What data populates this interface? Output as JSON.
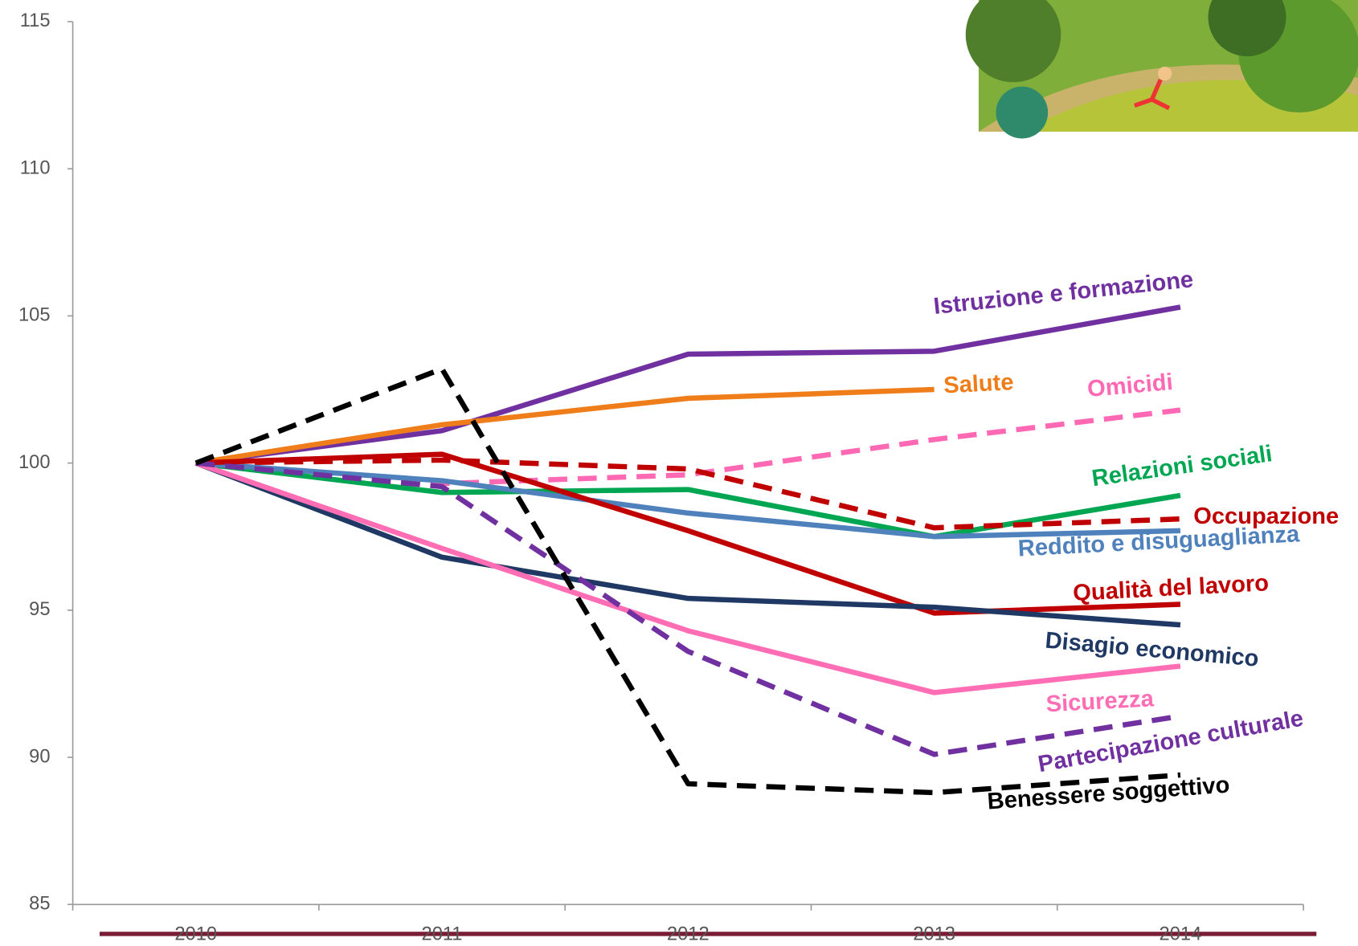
{
  "chart_data": {
    "type": "line",
    "categories": [
      "2010",
      "2011",
      "2012",
      "2013",
      "2014"
    ],
    "ylim": [
      85,
      115
    ],
    "yticks": [
      85,
      90,
      95,
      100,
      105,
      110,
      115
    ],
    "series": [
      {
        "name": "Istruzione e formazione",
        "color": "#7030a0",
        "dashed": false,
        "values": [
          100,
          101.1,
          103.7,
          103.8,
          105.3
        ]
      },
      {
        "name": "Salute",
        "color": "#ee7d1a",
        "dashed": false,
        "values": [
          100,
          101.3,
          102.2,
          102.5,
          null
        ]
      },
      {
        "name": "Omicidi",
        "color": "#ff69b4",
        "dashed": true,
        "values": [
          100,
          99.3,
          99.6,
          100.8,
          101.8
        ]
      },
      {
        "name": "Relazioni sociali",
        "color": "#00a651",
        "dashed": false,
        "values": [
          100,
          99.0,
          99.1,
          97.5,
          98.9
        ]
      },
      {
        "name": "Occupazione",
        "color": "#c00000",
        "dashed": true,
        "values": [
          100,
          100.1,
          99.8,
          97.8,
          98.1
        ]
      },
      {
        "name": "Reddito e disuguaglianza",
        "color": "#4f81bd",
        "dashed": false,
        "values": [
          100,
          99.4,
          98.3,
          97.5,
          97.7
        ]
      },
      {
        "name": "Qualità del lavoro",
        "color": "#c00000",
        "dashed": false,
        "values": [
          100,
          100.3,
          97.7,
          94.9,
          95.2
        ]
      },
      {
        "name": "Disagio economico",
        "color": "#1f3864",
        "dashed": false,
        "values": [
          100,
          96.8,
          95.4,
          95.1,
          94.5
        ]
      },
      {
        "name": "Sicurezza",
        "color": "#ff6eb4",
        "dashed": false,
        "values": [
          100,
          97.1,
          94.3,
          92.2,
          93.1
        ]
      },
      {
        "name": "Partecipazione culturale",
        "color": "#7030a0",
        "dashed": true,
        "values": [
          100,
          99.2,
          93.6,
          90.1,
          91.4
        ]
      },
      {
        "name": "Benessere soggettivo",
        "color": "#000000",
        "dashed": true,
        "values": [
          100,
          103.2,
          89.1,
          88.8,
          89.4
        ]
      }
    ]
  }
}
